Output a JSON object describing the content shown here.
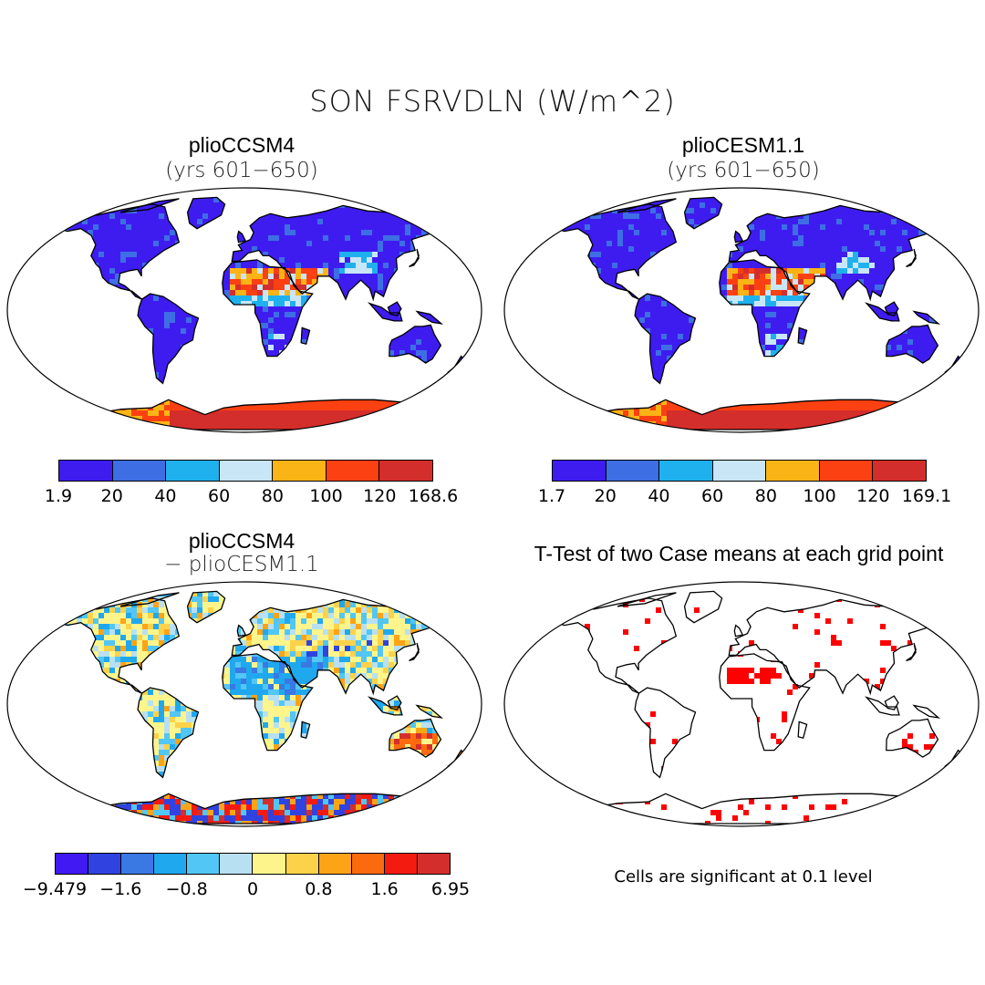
{
  "figure": {
    "title": "SON FSRVDLN (W/m^2)"
  },
  "panels": [
    {
      "title": "plioCCSM4",
      "subtitle": "(yrs 601−650)",
      "colorbar": {
        "labels": [
          "1.9",
          "20",
          "40",
          "60",
          "80",
          "100",
          "120",
          "168.6"
        ],
        "colors": [
          "#3e1cf0",
          "#3e6ee4",
          "#1fb1ee",
          "#c8e6f6",
          "#fbb416",
          "#fb4012",
          "#d42e2c"
        ]
      }
    },
    {
      "title": "plioCESM1.1",
      "subtitle": "(yrs 601−650)",
      "colorbar": {
        "labels": [
          "1.7",
          "20",
          "40",
          "60",
          "80",
          "100",
          "120",
          "169.1"
        ],
        "colors": [
          "#3e1cf0",
          "#3e6ee4",
          "#1fb1ee",
          "#c8e6f6",
          "#fbb416",
          "#fb4012",
          "#d42e2c"
        ]
      }
    },
    {
      "title": "plioCCSM4",
      "subtitle": "− plioCESM1.1",
      "colorbar": {
        "labels": [
          "−9.479",
          "−1.6",
          "−0.8",
          "0",
          "0.8",
          "1.6",
          "6.95"
        ],
        "colors": [
          "#4119f2",
          "#3043e0",
          "#3a78e4",
          "#20a8ee",
          "#52c6f4",
          "#b7e0f2",
          "#fdf58c",
          "#fcd24a",
          "#fca416",
          "#fc6a10",
          "#f41a10",
          "#d42e2c"
        ]
      }
    },
    {
      "title": "T-Test of two Case means at each grid point",
      "note": "Cells are significant at 0.1 level",
      "significance_color": "#ff0000"
    }
  ]
}
